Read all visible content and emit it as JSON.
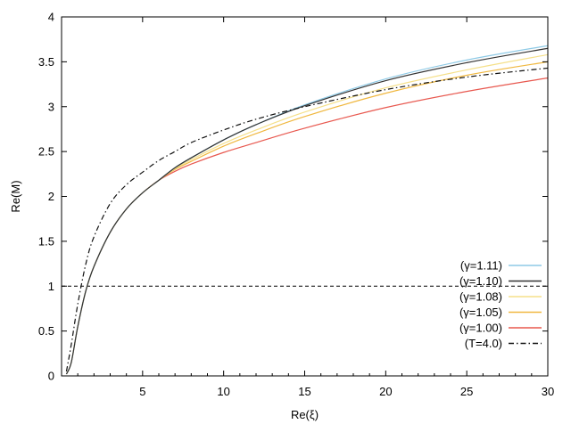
{
  "chart_data": {
    "type": "line",
    "title": "",
    "xlabel": "Re(ξ)",
    "ylabel": "Re(M)",
    "xlim": [
      0,
      30
    ],
    "ylim": [
      0,
      4
    ],
    "x_ticks": [
      5,
      10,
      15,
      20,
      25,
      30
    ],
    "x_tick_labels": [
      "5",
      "10",
      "15",
      "20",
      "25",
      "30"
    ],
    "y_ticks": [
      0,
      0.5,
      1,
      1.5,
      2,
      2.5,
      3,
      3.5,
      4
    ],
    "y_tick_labels": [
      "0",
      "0.5",
      "1",
      "1.5",
      "2",
      "2.5",
      "3",
      "3.5",
      "4"
    ],
    "grid": false,
    "legend_position": "bottom-right",
    "x": [
      0.3,
      0.6,
      1.0,
      1.5,
      2.0,
      3.0,
      4.0,
      5.0,
      6.0,
      7.0,
      8.0,
      10.0,
      12.0,
      15.0,
      20.0,
      25.0,
      30.0
    ],
    "series": [
      {
        "name": "(γ=1.11)",
        "color": "#8ecae6",
        "dash": "solid",
        "values": [
          0.02,
          0.15,
          0.55,
          0.95,
          1.22,
          1.6,
          1.86,
          2.04,
          2.18,
          2.32,
          2.43,
          2.63,
          2.8,
          3.02,
          3.31,
          3.52,
          3.68
        ]
      },
      {
        "name": "(γ=1.10)",
        "color": "#333333",
        "dash": "solid",
        "values": [
          0.02,
          0.15,
          0.55,
          0.95,
          1.22,
          1.6,
          1.86,
          2.04,
          2.18,
          2.32,
          2.43,
          2.63,
          2.8,
          3.01,
          3.29,
          3.49,
          3.65
        ]
      },
      {
        "name": "(γ=1.08)",
        "color": "#f5e08a",
        "dash": "solid",
        "values": [
          0.02,
          0.15,
          0.55,
          0.95,
          1.22,
          1.6,
          1.86,
          2.04,
          2.18,
          2.31,
          2.41,
          2.59,
          2.74,
          2.94,
          3.21,
          3.41,
          3.58
        ]
      },
      {
        "name": "(γ=1.05)",
        "color": "#f0b840",
        "dash": "solid",
        "values": [
          0.02,
          0.15,
          0.55,
          0.95,
          1.22,
          1.6,
          1.86,
          2.04,
          2.18,
          2.3,
          2.39,
          2.56,
          2.7,
          2.89,
          3.15,
          3.35,
          3.5
        ]
      },
      {
        "name": "(γ=1.00)",
        "color": "#e8584f",
        "dash": "solid",
        "values": [
          0.02,
          0.15,
          0.55,
          0.95,
          1.22,
          1.6,
          1.86,
          2.04,
          2.18,
          2.28,
          2.36,
          2.49,
          2.6,
          2.76,
          2.99,
          3.17,
          3.32
        ]
      },
      {
        "name": "(T=4.0)",
        "color": "#111111",
        "dash": "dashdot",
        "values": [
          0.05,
          0.35,
          0.8,
          1.25,
          1.55,
          1.92,
          2.13,
          2.27,
          2.4,
          2.5,
          2.6,
          2.74,
          2.86,
          3.0,
          3.19,
          3.33,
          3.43
        ]
      }
    ],
    "reference_lines": [
      {
        "y": 1,
        "color": "#000000",
        "dash": "dashed"
      }
    ]
  }
}
